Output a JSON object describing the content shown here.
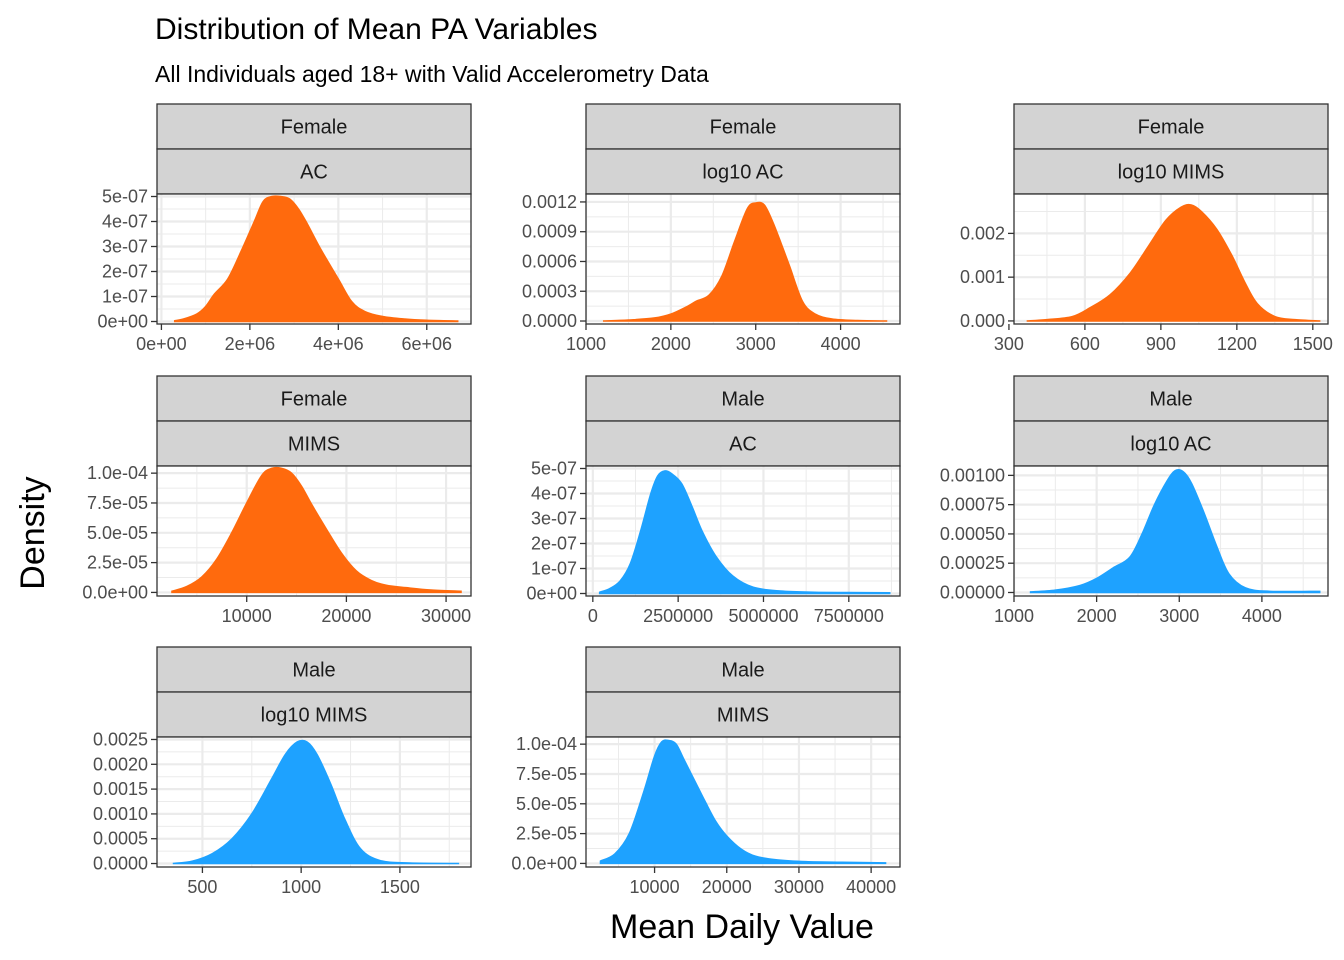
{
  "chart_data": {
    "type": "area",
    "title": "Distribution of Mean PA Variables",
    "subtitle": "All Individuals aged 18+ with Valid Accelerometry Data",
    "xlabel": "Mean Daily Value",
    "ylabel": "Density",
    "grid": true,
    "colors": {
      "Female": "#FF6A0D",
      "Male": "#1EA2FF"
    },
    "panels": [
      {
        "sex": "Female",
        "variable": "AC",
        "xlim": [
          -100000,
          7000000
        ],
        "ylim": [
          -1e-08,
          5.1e-07
        ],
        "xticks": [
          0,
          2000000,
          4000000,
          6000000
        ],
        "xtick_labels": [
          "0e+00",
          "2e+06",
          "4e+06",
          "6e+06"
        ],
        "yticks": [
          0,
          1e-07,
          2e-07,
          3e-07,
          4e-07,
          5e-07
        ],
        "ytick_labels": [
          "0e+00",
          "1e-07",
          "2e-07",
          "3e-07",
          "4e-07",
          "5e-07"
        ],
        "x": [
          300000,
          500000,
          800000,
          1000000,
          1200000,
          1500000,
          1800000,
          2100000,
          2300000,
          2500000,
          2700000,
          2900000,
          3100000,
          3300000,
          3600000,
          4000000,
          4300000,
          4600000,
          5000000,
          5500000,
          6000000,
          6700000
        ],
        "y": [
          3e-09,
          1e-08,
          3e-08,
          6e-08,
          1.1e-07,
          1.7e-07,
          2.8e-07,
          4e-07,
          4.8e-07,
          5e-07,
          5e-07,
          4.9e-07,
          4.5e-07,
          3.9e-07,
          2.9e-07,
          1.7e-07,
          8e-08,
          4e-08,
          2e-08,
          1e-08,
          5e-09,
          2e-09
        ]
      },
      {
        "sex": "Female",
        "variable": "log10 AC",
        "xlim": [
          1000,
          4700
        ],
        "ylim": [
          -3e-05,
          0.00128
        ],
        "xticks": [
          1000,
          2000,
          3000,
          4000
        ],
        "xtick_labels": [
          "1000",
          "2000",
          "3000",
          "4000"
        ],
        "yticks": [
          0,
          0.0003,
          0.0006,
          0.0009,
          0.0012
        ],
        "ytick_labels": [
          "0.0000",
          "0.0003",
          "0.0006",
          "0.0009",
          "0.0012"
        ],
        "x": [
          1200,
          1500,
          1800,
          2000,
          2200,
          2300,
          2450,
          2600,
          2750,
          2900,
          3000,
          3100,
          3200,
          3300,
          3400,
          3550,
          3700,
          3900,
          4200,
          4550
        ],
        "y": [
          0,
          1e-05,
          3e-05,
          7e-05,
          0.00015,
          0.0002,
          0.00026,
          0.00045,
          0.0008,
          0.00113,
          0.00119,
          0.00117,
          0.001,
          0.00078,
          0.00055,
          0.0002,
          7e-05,
          2e-05,
          5e-06,
          0
        ]
      },
      {
        "sex": "Female",
        "variable": "log10 MIMS",
        "xlim": [
          320,
          1560
        ],
        "ylim": [
          -7e-05,
          0.0029
        ],
        "xticks": [
          300,
          600,
          900,
          1200,
          1500
        ],
        "xtick_labels": [
          "300",
          "600",
          "900",
          "1200",
          "1500"
        ],
        "yticks": [
          0,
          0.001,
          0.002
        ],
        "ytick_labels": [
          "0.000",
          "0.001",
          "0.002"
        ],
        "x": [
          370,
          450,
          550,
          620,
          700,
          780,
          850,
          920,
          980,
          1020,
          1060,
          1120,
          1180,
          1230,
          1280,
          1350,
          1430,
          1530
        ],
        "y": [
          0,
          3e-05,
          0.0001,
          0.0003,
          0.0006,
          0.0011,
          0.0017,
          0.0023,
          0.0026,
          0.00265,
          0.0025,
          0.0021,
          0.0015,
          0.0009,
          0.0004,
          0.0001,
          3e-05,
          0
        ]
      },
      {
        "sex": "Female",
        "variable": "MIMS",
        "xlim": [
          1000,
          32500
        ],
        "ylim": [
          -3e-06,
          0.000106
        ],
        "xticks": [
          10000,
          20000,
          30000
        ],
        "xtick_labels": [
          "10000",
          "20000",
          "30000"
        ],
        "yticks": [
          0,
          2.5e-05,
          5e-05,
          7.5e-05,
          0.0001
        ],
        "ytick_labels": [
          "0.0e+00",
          "2.5e-05",
          "5.0e-05",
          "7.5e-05",
          "1.0e-04"
        ],
        "x": [
          2500,
          4000,
          5500,
          7000,
          8500,
          10000,
          11500,
          12500,
          13500,
          14500,
          15500,
          16500,
          18000,
          19500,
          21000,
          22500,
          24000,
          26000,
          28500,
          31500
        ],
        "y": [
          1e-06,
          5e-06,
          1.3e-05,
          2.8e-05,
          5e-05,
          7.5e-05,
          9.8e-05,
          0.000104,
          0.000104,
          0.0001,
          8.9e-05,
          7.4e-05,
          5.3e-05,
          3.3e-05,
          1.8e-05,
          1e-05,
          6e-06,
          4e-06,
          2e-06,
          1e-06
        ]
      },
      {
        "sex": "Male",
        "variable": "AC",
        "xlim": [
          -200000,
          9000000
        ],
        "ylim": [
          -1e-08,
          5.1e-07
        ],
        "xticks": [
          0,
          2500000,
          5000000,
          7500000
        ],
        "xtick_labels": [
          "0",
          "2500000",
          "5000000",
          "7500000"
        ],
        "yticks": [
          0,
          1e-07,
          2e-07,
          3e-07,
          4e-07,
          5e-07
        ],
        "ytick_labels": [
          "0e+00",
          "1e-07",
          "2e-07",
          "3e-07",
          "4e-07",
          "5e-07"
        ],
        "x": [
          200000,
          500000,
          800000,
          1100000,
          1400000,
          1700000,
          1900000,
          2100000,
          2300000,
          2600000,
          2900000,
          3200000,
          3600000,
          4100000,
          4700000,
          5500000,
          6500000,
          7500000,
          8700000
        ],
        "y": [
          5e-09,
          2e-08,
          5e-08,
          1.2e-07,
          2.5e-07,
          4e-07,
          4.7e-07,
          4.9e-07,
          4.8e-07,
          4.4e-07,
          3.5e-07,
          2.5e-07,
          1.5e-07,
          7e-08,
          2.5e-08,
          1e-08,
          5e-09,
          4e-09,
          3e-09
        ]
      },
      {
        "sex": "Male",
        "variable": "log10 AC",
        "xlim": [
          1000,
          4800
        ],
        "ylim": [
          -3e-05,
          0.00108
        ],
        "xticks": [
          1000,
          2000,
          3000,
          4000
        ],
        "xtick_labels": [
          "1000",
          "2000",
          "3000",
          "4000"
        ],
        "yticks": [
          0,
          0.00025,
          0.0005,
          0.00075,
          0.001
        ],
        "ytick_labels": [
          "0.00000",
          "0.00025",
          "0.00050",
          "0.00075",
          "0.00100"
        ],
        "x": [
          1200,
          1500,
          1800,
          2000,
          2200,
          2400,
          2550,
          2700,
          2850,
          2950,
          3050,
          3150,
          3300,
          3450,
          3600,
          3800,
          4100,
          4700
        ],
        "y": [
          5e-06,
          2e-05,
          6e-05,
          0.00012,
          0.00021,
          0.0003,
          0.0005,
          0.00075,
          0.00095,
          0.00104,
          0.00103,
          0.00093,
          0.00068,
          0.0004,
          0.00016,
          4e-05,
          1e-05,
          1e-05
        ]
      },
      {
        "sex": "Male",
        "variable": "log10 MIMS",
        "xlim": [
          270,
          1860
        ],
        "ylim": [
          -7e-05,
          0.00255
        ],
        "xticks": [
          500,
          1000,
          1500
        ],
        "xtick_labels": [
          "500",
          "1000",
          "1500"
        ],
        "yticks": [
          0,
          0.0005,
          0.001,
          0.0015,
          0.002,
          0.0025
        ],
        "ytick_labels": [
          "0.0000",
          "0.0005",
          "0.0010",
          "0.0015",
          "0.0020",
          "0.0025"
        ],
        "x": [
          350,
          450,
          550,
          650,
          750,
          850,
          920,
          980,
          1030,
          1080,
          1150,
          1220,
          1300,
          1400,
          1550,
          1800
        ],
        "y": [
          0,
          5e-05,
          0.0002,
          0.0005,
          0.001,
          0.0017,
          0.0022,
          0.00245,
          0.00245,
          0.0022,
          0.0016,
          0.0009,
          0.0003,
          6e-05,
          1e-05,
          0
        ]
      },
      {
        "sex": "Male",
        "variable": "MIMS",
        "xlim": [
          500,
          44000
        ],
        "ylim": [
          -3e-06,
          0.000106
        ],
        "xticks": [
          10000,
          20000,
          30000,
          40000
        ],
        "xtick_labels": [
          "10000",
          "20000",
          "30000",
          "40000"
        ],
        "yticks": [
          0,
          2.5e-05,
          5e-05,
          7.5e-05,
          0.0001
        ],
        "ytick_labels": [
          "0.0e+00",
          "2.5e-05",
          "5.0e-05",
          "7.5e-05",
          "1.0e-04"
        ],
        "x": [
          2500,
          4500,
          6500,
          8500,
          10000,
          11000,
          12000,
          13000,
          14000,
          15500,
          17000,
          18500,
          20000,
          22000,
          24000,
          27000,
          31000,
          36000,
          42000
        ],
        "y": [
          2e-06,
          8e-06,
          2.5e-05,
          6e-05,
          9e-05,
          0.000102,
          0.000103,
          0.0001,
          8.8e-05,
          7e-05,
          5.2e-05,
          3.5e-05,
          2.3e-05,
          1.2e-05,
          6e-06,
          3e-06,
          1.5e-06,
          1e-06,
          5e-07
        ]
      }
    ]
  }
}
